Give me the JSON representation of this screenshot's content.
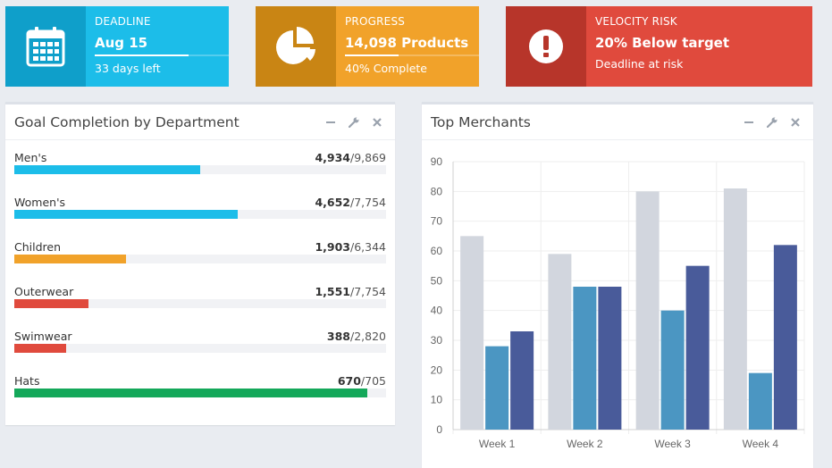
{
  "stats": {
    "deadline": {
      "label": "DEADLINE",
      "value": "Aug 15",
      "sub": "33 days left",
      "progress": 0.7,
      "icon": "calendar-icon"
    },
    "progress": {
      "label": "PROGRESS",
      "value": "14,098 Products",
      "sub": "40% Complete",
      "progress": 0.4,
      "icon": "pie-chart-icon"
    },
    "risk": {
      "label": "VELOCITY RISK",
      "value": "20% Below target",
      "sub": "Deadline at risk",
      "icon": "exclamation-icon"
    }
  },
  "goals_panel": {
    "title": "Goal Completion by Department",
    "items": [
      {
        "name": "Men's",
        "done": "4,934",
        "total": "/9,869",
        "fraction": 0.5,
        "color": "#1cbde9"
      },
      {
        "name": "Women's",
        "done": "4,652",
        "total": "/7,754",
        "fraction": 0.6,
        "color": "#1cbde9"
      },
      {
        "name": "Children",
        "done": "1,903",
        "total": "/6,344",
        "fraction": 0.3,
        "color": "#f1a22a"
      },
      {
        "name": "Outerwear",
        "done": "1,551",
        "total": "/7,754",
        "fraction": 0.2,
        "color": "#e04a3d"
      },
      {
        "name": "Swimwear",
        "done": "388",
        "total": "/2,820",
        "fraction": 0.14,
        "color": "#e04a3d"
      },
      {
        "name": "Hats",
        "done": "670",
        "total": "/705",
        "fraction": 0.95,
        "color": "#14a85a"
      }
    ]
  },
  "merchants_panel": {
    "title": "Top Merchants"
  },
  "chart_data": {
    "type": "bar",
    "categories": [
      "Week 1",
      "Week 2",
      "Week 3",
      "Week 4"
    ],
    "series": [
      {
        "values": [
          65,
          59,
          80,
          81
        ],
        "color": "#d2d6de"
      },
      {
        "values": [
          28,
          48,
          40,
          19
        ],
        "color": "#4b96c2"
      },
      {
        "values": [
          33,
          48,
          55,
          62
        ],
        "color": "#495b9a"
      }
    ],
    "yticks": [
      0,
      10,
      20,
      30,
      40,
      50,
      60,
      70,
      80,
      90
    ],
    "ylim": [
      0,
      90
    ],
    "grid": true,
    "title": "",
    "xlabel": "",
    "ylabel": ""
  }
}
